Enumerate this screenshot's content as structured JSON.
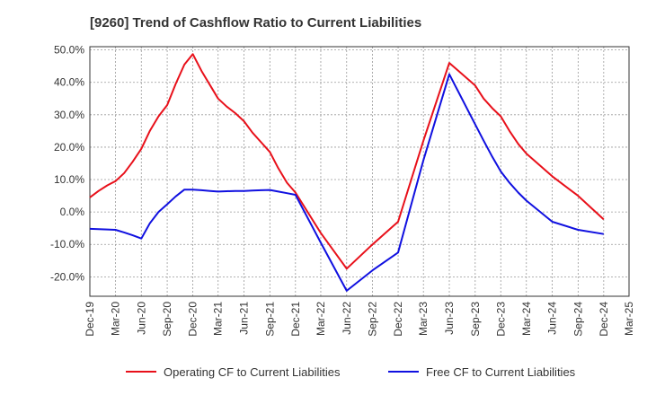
{
  "chart_data": {
    "type": "line",
    "title": "[9260]  Trend of Cashflow Ratio to Current Liabilities",
    "xlabel": "",
    "ylabel": "",
    "x_tick_labels": [
      "Dec-19",
      "Mar-20",
      "Jun-20",
      "Sep-20",
      "Dec-20",
      "Mar-21",
      "Jun-21",
      "Sep-21",
      "Dec-21",
      "Mar-22",
      "Jun-22",
      "Sep-22",
      "Dec-22",
      "Mar-23",
      "Jun-23",
      "Sep-23",
      "Dec-23",
      "Mar-24",
      "Jun-24",
      "Sep-24",
      "Dec-24",
      "Mar-25"
    ],
    "y_tick_labels": [
      "50.0%",
      "40.0%",
      "30.0%",
      "20.0%",
      "10.0%",
      "0.0%",
      "-10.0%",
      "-20.0%"
    ],
    "y_ticks": [
      50,
      40,
      30,
      20,
      10,
      0,
      -10,
      -20
    ],
    "ylim": [
      -26,
      51
    ],
    "grid": true,
    "legend_position": "bottom",
    "x": [
      "2019-12",
      "2020-01",
      "2020-02",
      "2020-03",
      "2020-04",
      "2020-05",
      "2020-06",
      "2020-07",
      "2020-08",
      "2020-09",
      "2020-10",
      "2020-11",
      "2020-12",
      "2021-01",
      "2021-02",
      "2021-03",
      "2021-04",
      "2021-05",
      "2021-06",
      "2021-07",
      "2021-08",
      "2021-09",
      "2021-10",
      "2021-11",
      "2021-12",
      "2022-03",
      "2022-06",
      "2022-09",
      "2022-12",
      "2023-03",
      "2023-06",
      "2023-09",
      "2023-10",
      "2023-11",
      "2023-12",
      "2024-01",
      "2024-02",
      "2024-03",
      "2024-06",
      "2024-09",
      "2024-12"
    ],
    "series": [
      {
        "name": "Operating CF to Current Liabilities",
        "color": "#e8101a",
        "values": [
          4.5,
          6.5,
          8.2,
          9.5,
          12.0,
          15.5,
          19.5,
          25.0,
          29.5,
          33.0,
          39.5,
          45.5,
          48.7,
          43.5,
          39.0,
          35.0,
          32.5,
          30.5,
          28.0,
          24.5,
          21.5,
          18.5,
          13.5,
          9.0,
          6.0,
          -6.5,
          -17.5,
          -10.0,
          -3.0,
          22.0,
          46.0,
          39.0,
          35.0,
          32.0,
          29.5,
          25.0,
          21.0,
          18.0,
          11.0,
          5.0,
          -2.3
        ]
      },
      {
        "name": "Free CF to Current Liabilities",
        "color": "#1010e0",
        "values": [
          -5.2,
          -5.3,
          -5.4,
          -5.5,
          -6.3,
          -7.2,
          -8.2,
          -3.5,
          0.0,
          2.4,
          4.8,
          6.9,
          6.9,
          6.7,
          6.5,
          6.3,
          6.4,
          6.5,
          6.5,
          6.6,
          6.7,
          6.8,
          6.3,
          5.8,
          5.3,
          -9.5,
          -24.3,
          -18.0,
          -12.5,
          16.0,
          42.5,
          27.0,
          22.0,
          17.0,
          12.5,
          9.0,
          6.0,
          3.5,
          -3.0,
          -5.5,
          -6.8
        ]
      }
    ]
  }
}
